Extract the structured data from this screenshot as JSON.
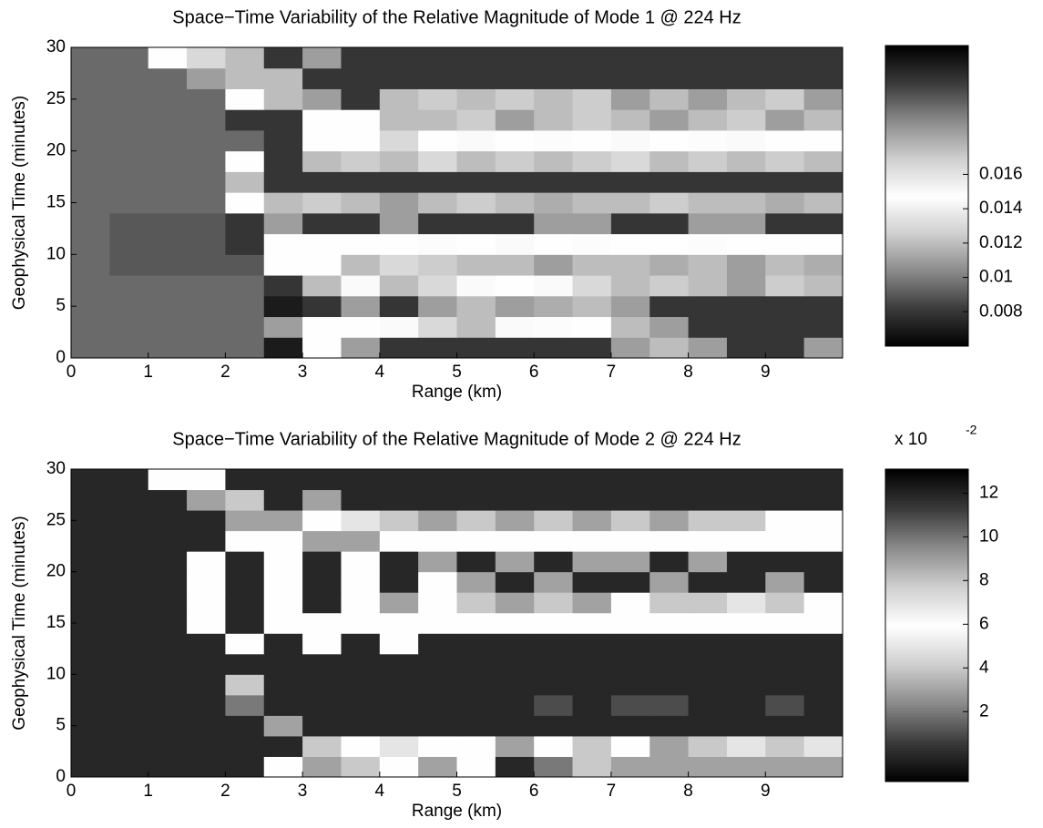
{
  "chart_data": [
    {
      "type": "heatmap",
      "title": "Space−Time Variability of the Relative Magnitude of Mode 1 @ 224 Hz",
      "xlabel": "Range (km)",
      "ylabel": "Geophysical Time (minutes)",
      "x": [
        0.25,
        0.75,
        1.25,
        1.75,
        2.25,
        2.75,
        3.25,
        3.75,
        4.25,
        4.75,
        5.25,
        5.75,
        6.25,
        6.75,
        7.25,
        7.75,
        8.25,
        8.75,
        9.25,
        9.75
      ],
      "y": [
        1,
        3,
        5,
        7,
        9,
        11,
        13,
        15,
        17,
        19,
        21,
        23,
        25,
        27,
        29
      ],
      "z": [
        [
          0.0095,
          0.0095,
          0.0095,
          0.0095,
          0.0095,
          0.007,
          0.0147,
          0.011,
          0.0215,
          0.0215,
          0.0215,
          0.0215,
          0.0215,
          0.0215,
          0.011,
          0.012,
          0.011,
          0.0215,
          0.0215,
          0.011
        ],
        [
          0.0095,
          0.0095,
          0.0095,
          0.0095,
          0.0095,
          0.011,
          0.0147,
          0.0147,
          0.0145,
          0.013,
          0.012,
          0.0145,
          0.0146,
          0.0147,
          0.012,
          0.011,
          0.0215,
          0.0215,
          0.0215,
          0.0215
        ],
        [
          0.0095,
          0.0095,
          0.0095,
          0.0095,
          0.0095,
          0.007,
          0.0215,
          0.011,
          0.0215,
          0.011,
          0.012,
          0.011,
          0.0115,
          0.012,
          0.011,
          0.0215,
          0.0215,
          0.0215,
          0.0215,
          0.0215
        ],
        [
          0.0095,
          0.0095,
          0.0095,
          0.0095,
          0.0095,
          0.0215,
          0.012,
          0.0145,
          0.012,
          0.013,
          0.0145,
          0.0147,
          0.0145,
          0.013,
          0.012,
          0.0125,
          0.012,
          0.011,
          0.0125,
          0.012
        ],
        [
          0.0095,
          0.009,
          0.009,
          0.009,
          0.009,
          0.0147,
          0.0147,
          0.012,
          0.013,
          0.0125,
          0.012,
          0.012,
          0.011,
          0.012,
          0.012,
          0.0115,
          0.012,
          0.011,
          0.012,
          0.0115
        ],
        [
          0.0095,
          0.009,
          0.009,
          0.009,
          0.0215,
          0.0147,
          0.0147,
          0.0147,
          0.0147,
          0.0146,
          0.0147,
          0.0145,
          0.0147,
          0.0146,
          0.0147,
          0.0147,
          0.0146,
          0.0147,
          0.0147,
          0.0147
        ],
        [
          0.0095,
          0.009,
          0.009,
          0.009,
          0.0215,
          0.011,
          0.0215,
          0.0215,
          0.011,
          0.0215,
          0.0215,
          0.0215,
          0.011,
          0.011,
          0.0215,
          0.0215,
          0.011,
          0.011,
          0.0215,
          0.0215
        ],
        [
          0.0095,
          0.0095,
          0.0095,
          0.0095,
          0.0147,
          0.012,
          0.0125,
          0.012,
          0.011,
          0.012,
          0.0125,
          0.012,
          0.0115,
          0.012,
          0.012,
          0.0125,
          0.012,
          0.012,
          0.0115,
          0.012
        ],
        [
          0.0095,
          0.0095,
          0.0095,
          0.0095,
          0.012,
          0.0215,
          0.0215,
          0.0215,
          0.0215,
          0.0215,
          0.0215,
          0.0215,
          0.0215,
          0.0215,
          0.0215,
          0.0215,
          0.0215,
          0.0215,
          0.0215,
          0.0215
        ],
        [
          0.0095,
          0.0095,
          0.0095,
          0.0095,
          0.0147,
          0.0215,
          0.012,
          0.0125,
          0.012,
          0.013,
          0.012,
          0.0125,
          0.012,
          0.0125,
          0.013,
          0.012,
          0.0125,
          0.012,
          0.0125,
          0.012
        ],
        [
          0.0095,
          0.0095,
          0.0095,
          0.0095,
          0.0095,
          0.0215,
          0.0147,
          0.0147,
          0.013,
          0.0147,
          0.0145,
          0.0147,
          0.0146,
          0.0147,
          0.0145,
          0.0147,
          0.0146,
          0.0145,
          0.0147,
          0.0147
        ],
        [
          0.0095,
          0.0095,
          0.0095,
          0.0095,
          0.0215,
          0.0215,
          0.0147,
          0.0147,
          0.012,
          0.012,
          0.0125,
          0.011,
          0.012,
          0.0125,
          0.012,
          0.011,
          0.012,
          0.0125,
          0.011,
          0.012
        ],
        [
          0.0095,
          0.0095,
          0.0095,
          0.0095,
          0.0147,
          0.012,
          0.011,
          0.0215,
          0.012,
          0.0125,
          0.012,
          0.0125,
          0.012,
          0.0125,
          0.011,
          0.012,
          0.011,
          0.012,
          0.0125,
          0.011
        ],
        [
          0.0095,
          0.0095,
          0.0095,
          0.011,
          0.012,
          0.012,
          0.0215,
          0.0215,
          0.0215,
          0.0215,
          0.0215,
          0.0215,
          0.0215,
          0.0215,
          0.0215,
          0.0215,
          0.0215,
          0.0215,
          0.0215,
          0.0215
        ],
        [
          0.0095,
          0.0095,
          0.0147,
          0.013,
          0.012,
          0.0215,
          0.011,
          0.0215,
          0.0215,
          0.0215,
          0.0215,
          0.0215,
          0.0215,
          0.0215,
          0.0215,
          0.0215,
          0.0215,
          0.0215,
          0.0215,
          0.0215
        ]
      ],
      "xlim": [
        0,
        10
      ],
      "ylim": [
        0,
        30
      ],
      "xticks": [
        0,
        1,
        2,
        3,
        4,
        5,
        6,
        7,
        8,
        9
      ],
      "yticks": [
        0,
        5,
        10,
        15,
        20,
        25,
        30
      ],
      "zlim": [
        0.006,
        0.0235
      ],
      "zticks": [
        0.008,
        0.01,
        0.012,
        0.014,
        0.016
      ],
      "colormap": [
        "#000000",
        "#3a3a3a",
        "#8a8a8a",
        "#cfcfcf",
        "#ffffff",
        "#cfcfcf",
        "#8a8a8a",
        "#3a3a3a",
        "#000000"
      ]
    },
    {
      "type": "heatmap",
      "title": "Space−Time Variability of the Relative Magnitude of Mode 2 @ 224 Hz",
      "xlabel": "Range (km)",
      "ylabel": "Geophysical Time (minutes)",
      "x": [
        0.25,
        0.75,
        1.25,
        1.75,
        2.25,
        2.75,
        3.25,
        3.75,
        4.25,
        4.75,
        5.25,
        5.75,
        6.25,
        6.75,
        7.25,
        7.75,
        8.25,
        8.75,
        9.25,
        9.75
      ],
      "y": [
        1,
        3,
        5,
        7,
        9,
        11,
        13,
        15,
        17,
        19,
        21,
        23,
        25,
        27,
        29
      ],
      "z": [
        [
          0,
          0,
          0,
          0,
          0,
          6,
          3,
          4,
          6,
          3,
          6,
          0,
          2,
          4,
          3,
          3,
          3,
          3,
          3,
          3
        ],
        [
          0,
          0,
          0,
          0,
          0,
          0,
          4,
          6,
          5,
          6,
          6,
          3,
          6,
          4,
          6,
          3,
          4,
          5,
          4,
          5
        ],
        [
          0,
          0,
          0,
          0,
          0,
          3,
          0,
          0,
          0,
          0,
          0,
          0,
          0,
          0,
          0,
          0,
          0,
          0,
          0,
          0
        ],
        [
          0,
          0,
          0,
          0,
          2,
          0,
          0,
          0,
          0,
          0,
          0,
          0,
          1,
          0,
          1,
          1,
          0,
          0,
          1,
          0
        ],
        [
          0,
          0,
          0,
          0,
          4,
          0,
          0,
          0,
          0,
          0,
          0,
          0,
          0,
          0,
          0,
          0,
          0,
          0,
          0,
          0
        ],
        [
          0,
          0,
          0,
          0,
          0,
          0,
          0,
          0,
          0,
          0,
          0,
          0,
          0,
          0,
          0,
          0,
          0,
          0,
          0,
          0
        ],
        [
          0,
          0,
          0,
          0,
          6,
          0,
          6,
          0,
          6,
          0,
          0,
          0,
          0,
          0,
          0,
          0,
          0,
          0,
          0,
          0
        ],
        [
          0,
          0,
          0,
          6,
          0,
          6,
          6,
          6,
          6,
          6,
          6,
          6,
          6,
          6,
          6,
          6,
          6,
          6,
          6,
          6
        ],
        [
          0,
          0,
          0,
          6,
          0,
          6,
          0,
          6,
          3,
          6,
          4,
          3,
          4,
          3,
          6,
          4,
          4,
          5,
          4,
          6
        ],
        [
          0,
          0,
          0,
          6,
          0,
          6,
          0,
          6,
          0,
          6,
          3,
          0,
          3,
          0,
          0,
          3,
          0,
          0,
          3,
          0
        ],
        [
          0,
          0,
          0,
          6,
          0,
          6,
          0,
          6,
          0,
          3,
          0,
          3,
          0,
          3,
          3,
          0,
          3,
          0,
          0,
          0
        ],
        [
          0,
          0,
          0,
          0,
          6,
          6,
          3,
          3,
          6,
          6,
          6,
          6,
          6,
          6,
          6,
          6,
          6,
          6,
          6,
          6
        ],
        [
          0,
          0,
          0,
          0,
          3,
          3,
          6,
          5,
          4,
          3,
          4,
          3,
          4,
          3,
          4,
          3,
          4,
          4,
          6,
          6
        ],
        [
          0,
          0,
          0,
          3,
          4,
          0,
          3,
          0,
          0,
          0,
          0,
          0,
          0,
          0,
          0,
          0,
          0,
          0,
          0,
          0
        ],
        [
          0,
          0,
          6,
          6,
          0,
          0,
          0,
          0,
          0,
          0,
          0,
          0,
          0,
          0,
          0,
          0,
          0,
          0,
          0,
          0
        ]
      ],
      "xlim": [
        0,
        10
      ],
      "ylim": [
        0,
        30
      ],
      "xticks": [
        0,
        1,
        2,
        3,
        4,
        5,
        6,
        7,
        8,
        9
      ],
      "yticks": [
        0,
        5,
        10,
        15,
        20,
        25,
        30
      ],
      "zlim": [
        -1.2,
        13.1
      ],
      "zticks": [
        2,
        4,
        6,
        8,
        10,
        12
      ],
      "colorbar_multiplier": "x 10",
      "colorbar_exponent": "-2",
      "colormap": [
        "#000000",
        "#3a3a3a",
        "#8a8a8a",
        "#cfcfcf",
        "#ffffff",
        "#cfcfcf",
        "#8a8a8a",
        "#3a3a3a",
        "#000000"
      ]
    }
  ]
}
